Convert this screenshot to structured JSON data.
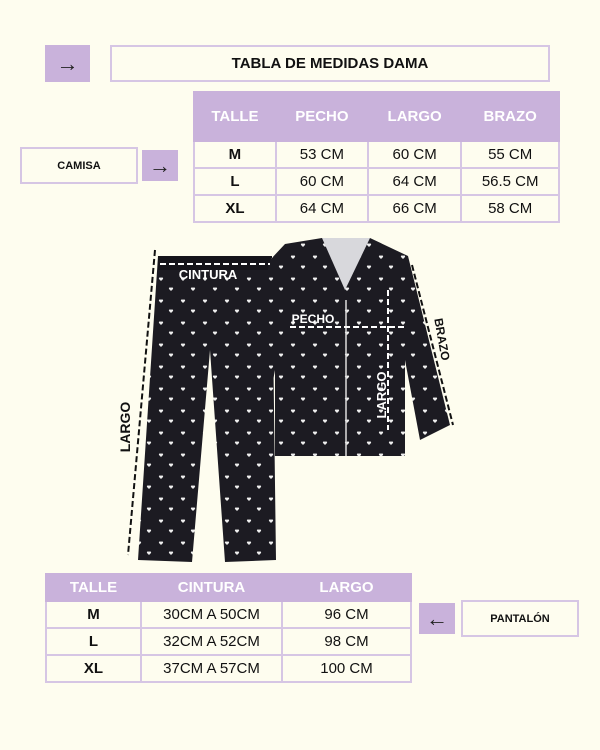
{
  "title": "TABLA DE MEDIDAS DAMA",
  "colors": {
    "background": "#fefdef",
    "accent": "#c9b2db",
    "border": "#d6c6e4",
    "garment": "#1c1b22"
  },
  "icons": {
    "title_arrow": "arrow-right-icon",
    "camisa_arrow": "arrow-right-icon",
    "pantalon_arrow": "arrow-left-icon"
  },
  "camisa": {
    "label": "CAMISA",
    "headers": [
      "TALLE",
      "PECHO",
      "LARGO",
      "BRAZO"
    ],
    "rows": [
      [
        "M",
        "53 CM",
        "60 CM",
        "55 CM"
      ],
      [
        "L",
        "60 CM",
        "64 CM",
        "56.5 CM"
      ],
      [
        "XL",
        "64 CM",
        "66 CM",
        "58 CM"
      ]
    ]
  },
  "pantalon": {
    "label": "PANTALÓN",
    "headers": [
      "TALLE",
      "CINTURA",
      "LARGO"
    ],
    "rows": [
      [
        "M",
        "30CM A 50CM",
        "96 CM"
      ],
      [
        "L",
        "32CM A 52CM",
        "98 CM"
      ],
      [
        "XL",
        "37CM A 57CM",
        "100 CM"
      ]
    ]
  },
  "diagram": {
    "cintura": "CINTURA",
    "largo_pant": "LARGO",
    "pecho": "PECHO",
    "largo_camisa": "LARGO",
    "brazo": "BRAZO"
  }
}
